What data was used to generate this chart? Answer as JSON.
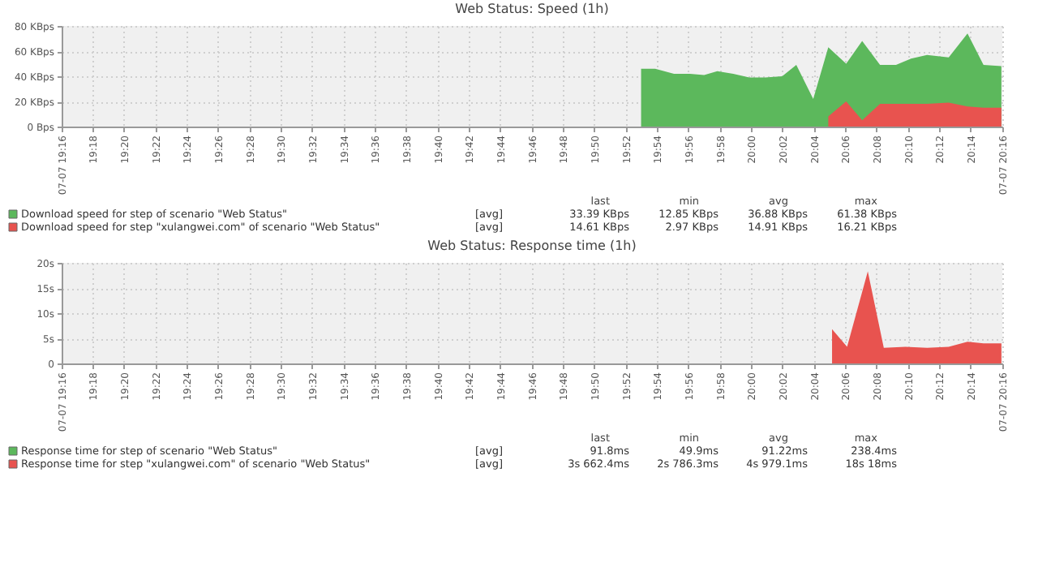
{
  "chart_data": [
    {
      "type": "area",
      "title": "Web Status: Speed (1h)",
      "grid": true,
      "legend": "bottom",
      "xlim": [
        19.267,
        20.267
      ],
      "xticks": [
        {
          "value": 19.267,
          "label": "07-07 19:16"
        },
        {
          "value": 19.3,
          "label": "19:18"
        },
        {
          "value": 19.333,
          "label": "19:20"
        },
        {
          "value": 19.367,
          "label": "19:22"
        },
        {
          "value": 19.4,
          "label": "19:24"
        },
        {
          "value": 19.433,
          "label": "19:26"
        },
        {
          "value": 19.467,
          "label": "19:28"
        },
        {
          "value": 19.5,
          "label": "19:30"
        },
        {
          "value": 19.533,
          "label": "19:32"
        },
        {
          "value": 19.567,
          "label": "19:34"
        },
        {
          "value": 19.6,
          "label": "19:36"
        },
        {
          "value": 19.633,
          "label": "19:38"
        },
        {
          "value": 19.667,
          "label": "19:40"
        },
        {
          "value": 19.7,
          "label": "19:42"
        },
        {
          "value": 19.733,
          "label": "19:44"
        },
        {
          "value": 19.767,
          "label": "19:46"
        },
        {
          "value": 19.8,
          "label": "19:48"
        },
        {
          "value": 19.833,
          "label": "19:50"
        },
        {
          "value": 19.867,
          "label": "19:52"
        },
        {
          "value": 19.9,
          "label": "19:54"
        },
        {
          "value": 19.933,
          "label": "19:56"
        },
        {
          "value": 19.967,
          "label": "19:58"
        },
        {
          "value": 20.0,
          "label": "20:00"
        },
        {
          "value": 20.033,
          "label": "20:02"
        },
        {
          "value": 20.067,
          "label": "20:04"
        },
        {
          "value": 20.1,
          "label": "20:06"
        },
        {
          "value": 20.133,
          "label": "20:08"
        },
        {
          "value": 20.167,
          "label": "20:10"
        },
        {
          "value": 20.2,
          "label": "20:12"
        },
        {
          "value": 20.233,
          "label": "20:14"
        },
        {
          "value": 20.267,
          "label": "07-07 20:16"
        }
      ],
      "ylim": [
        0,
        80
      ],
      "yticks": [
        {
          "value": 0,
          "label": "0 Bps"
        },
        {
          "value": 20,
          "label": "20 KBps"
        },
        {
          "value": 40,
          "label": "40 KBps"
        },
        {
          "value": 60,
          "label": "60 KBps"
        },
        {
          "value": 80,
          "label": "80 KBps"
        }
      ],
      "series": [
        {
          "name": "Download speed for step of scenario \"Web Status\"",
          "color": "#5cb85c",
          "x": [
            19.883,
            19.898,
            19.918,
            19.935,
            19.95,
            19.964,
            19.981,
            19.998,
            20.015,
            20.033,
            20.048,
            20.066,
            20.082,
            20.101,
            20.118,
            20.137,
            20.154,
            20.17,
            20.187,
            20.21,
            20.23,
            20.247,
            20.266
          ],
          "values": [
            46,
            46,
            42,
            42,
            41,
            44,
            42,
            39,
            39,
            40,
            49,
            22,
            63,
            50,
            68,
            49,
            49,
            54,
            57,
            55,
            74,
            49,
            48
          ]
        },
        {
          "name": "Download speed for step \"xulangwei.com\" of scenario \"Web Status\"",
          "color": "#e8534f",
          "x": [
            20.082,
            20.101,
            20.118,
            20.137,
            20.154,
            20.17,
            20.187,
            20.21,
            20.23,
            20.247,
            20.266
          ],
          "values": [
            8,
            20,
            5,
            18,
            18,
            18,
            18,
            19,
            16,
            15,
            15
          ]
        }
      ],
      "annotations": [
        "last",
        "min",
        "avg",
        "max",
        "[avg]",
        "33.39 KBps",
        "12.85 KBps",
        "36.88 KBps",
        "61.38 KBps",
        "[avg]",
        "14.61 KBps",
        "2.97 KBps",
        "14.91 KBps",
        "16.21 KBps"
      ]
    },
    {
      "type": "area",
      "title": "Web Status: Response time (1h)",
      "grid": true,
      "legend": "bottom",
      "xlim": [
        19.267,
        20.267
      ],
      "xticks": [
        {
          "value": 19.267,
          "label": "07-07 19:16"
        },
        {
          "value": 19.3,
          "label": "19:18"
        },
        {
          "value": 19.333,
          "label": "19:20"
        },
        {
          "value": 19.367,
          "label": "19:22"
        },
        {
          "value": 19.4,
          "label": "19:24"
        },
        {
          "value": 19.433,
          "label": "19:26"
        },
        {
          "value": 19.467,
          "label": "19:28"
        },
        {
          "value": 19.5,
          "label": "19:30"
        },
        {
          "value": 19.533,
          "label": "19:32"
        },
        {
          "value": 19.567,
          "label": "19:34"
        },
        {
          "value": 19.6,
          "label": "19:36"
        },
        {
          "value": 19.633,
          "label": "19:38"
        },
        {
          "value": 19.667,
          "label": "19:40"
        },
        {
          "value": 19.7,
          "label": "19:42"
        },
        {
          "value": 19.733,
          "label": "19:44"
        },
        {
          "value": 19.767,
          "label": "19:46"
        },
        {
          "value": 19.8,
          "label": "19:48"
        },
        {
          "value": 19.833,
          "label": "19:50"
        },
        {
          "value": 19.867,
          "label": "19:52"
        },
        {
          "value": 19.9,
          "label": "19:54"
        },
        {
          "value": 19.933,
          "label": "19:56"
        },
        {
          "value": 19.967,
          "label": "19:58"
        },
        {
          "value": 20.0,
          "label": "20:00"
        },
        {
          "value": 20.033,
          "label": "20:02"
        },
        {
          "value": 20.067,
          "label": "20:04"
        },
        {
          "value": 20.1,
          "label": "20:06"
        },
        {
          "value": 20.133,
          "label": "20:08"
        },
        {
          "value": 20.167,
          "label": "20:10"
        },
        {
          "value": 20.2,
          "label": "20:12"
        },
        {
          "value": 20.233,
          "label": "20:14"
        },
        {
          "value": 20.267,
          "label": "07-07 20:16"
        }
      ],
      "ylim": [
        0,
        20
      ],
      "yticks": [
        {
          "value": 0,
          "label": "0"
        },
        {
          "value": 5,
          "label": "5s"
        },
        {
          "value": 10,
          "label": "10s"
        },
        {
          "value": 15,
          "label": "15s"
        },
        {
          "value": 20,
          "label": "20s"
        }
      ],
      "series": [
        {
          "name": "Response time for step of scenario \"Web Status\"",
          "color": "#5cb85c",
          "x": [
            20.086,
            20.266
          ],
          "values": [
            0.1,
            0.1
          ]
        },
        {
          "name": "Response time for step \"xulangwei.com\" of scenario \"Web Status\"",
          "color": "#e8534f",
          "x": [
            20.086,
            20.102,
            20.124,
            20.141,
            20.164,
            20.187,
            20.21,
            20.23,
            20.247,
            20.266
          ],
          "values": [
            6.8,
            3.3,
            18.3,
            3.1,
            3.3,
            3.1,
            3.3,
            4.3,
            4.0,
            4.0
          ]
        }
      ],
      "annotations": [
        "last",
        "min",
        "avg",
        "max",
        "[avg]",
        "91.8ms",
        "49.9ms",
        "91.22ms",
        "238.4ms",
        "[avg]",
        "3s 662.4ms",
        "2s 786.3ms",
        "4s 979.1ms",
        "18s 18ms"
      ]
    }
  ]
}
